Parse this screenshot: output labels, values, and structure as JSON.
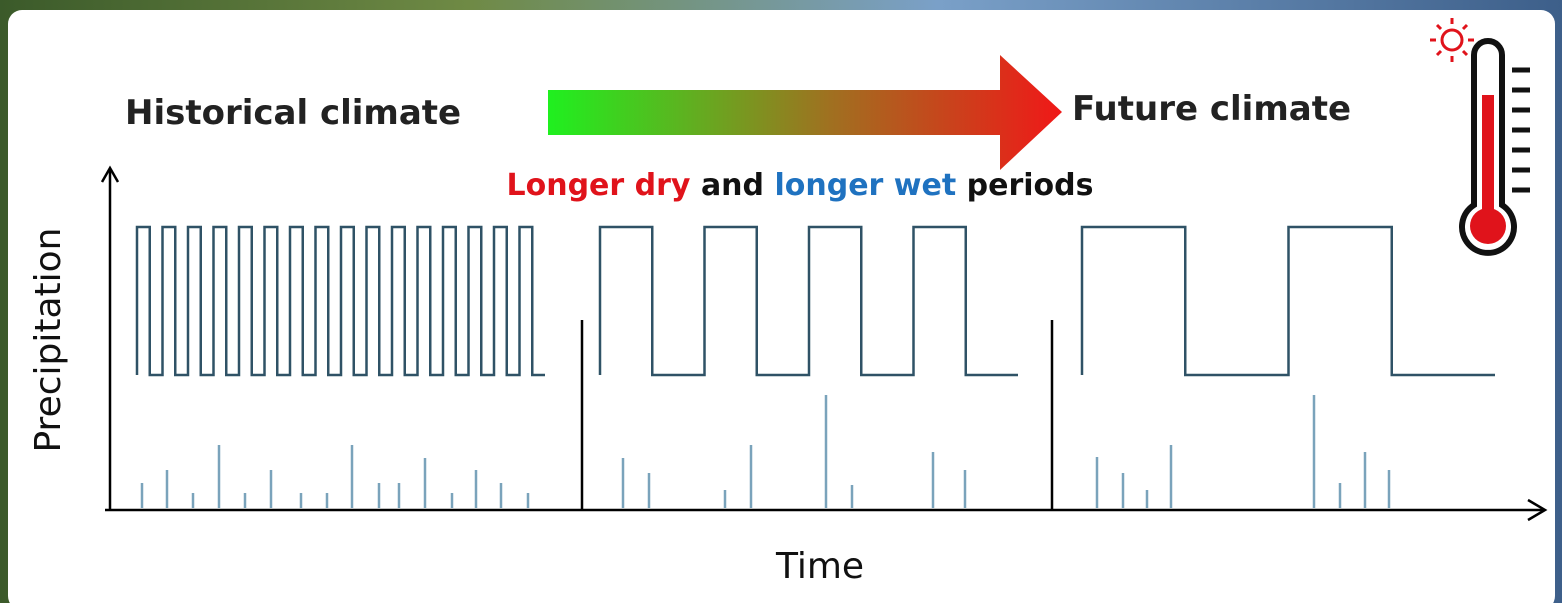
{
  "header": {
    "left": "Historical climate",
    "right": "Future climate"
  },
  "subtitle": {
    "part1": "Longer dry",
    "part2": "and",
    "part3": "longer wet",
    "part4": "periods"
  },
  "axes": {
    "y": "Precipitation",
    "x": "Time"
  }
}
